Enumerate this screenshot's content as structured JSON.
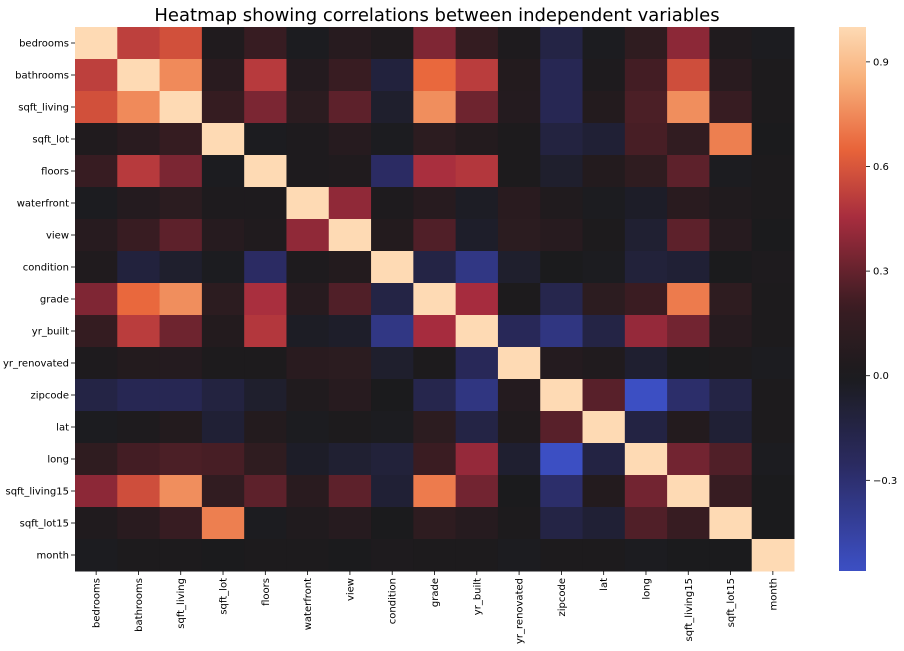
{
  "chart_data": {
    "type": "heatmap",
    "title": "Heatmap showing correlations between independent variables",
    "xlabel": "",
    "ylabel": "",
    "variables": [
      "bedrooms",
      "bathrooms",
      "sqft_living",
      "sqft_lot",
      "floors",
      "waterfront",
      "view",
      "condition",
      "grade",
      "yr_built",
      "yr_renovated",
      "zipcode",
      "lat",
      "long",
      "sqft_living15",
      "sqft_lot15",
      "month"
    ],
    "matrix": [
      [
        1.0,
        0.52,
        0.58,
        0.03,
        0.18,
        -0.01,
        0.08,
        0.03,
        0.36,
        0.16,
        0.02,
        -0.15,
        -0.01,
        0.13,
        0.39,
        0.03,
        -0.01
      ],
      [
        0.52,
        1.0,
        0.75,
        0.09,
        0.5,
        0.06,
        0.19,
        -0.12,
        0.66,
        0.51,
        0.05,
        -0.2,
        0.02,
        0.22,
        0.57,
        0.09,
        0.01
      ],
      [
        0.58,
        0.75,
        1.0,
        0.17,
        0.35,
        0.1,
        0.28,
        -0.06,
        0.76,
        0.32,
        0.06,
        -0.2,
        0.05,
        0.24,
        0.76,
        0.18,
        0.01
      ],
      [
        0.03,
        0.09,
        0.17,
        1.0,
        -0.01,
        0.02,
        0.07,
        -0.01,
        0.11,
        0.05,
        0.01,
        -0.13,
        -0.09,
        0.23,
        0.14,
        0.72,
        0.0
      ],
      [
        0.18,
        0.5,
        0.35,
        -0.01,
        1.0,
        0.02,
        0.03,
        -0.26,
        0.46,
        0.49,
        0.01,
        -0.06,
        0.05,
        0.13,
        0.28,
        -0.01,
        0.01
      ],
      [
        -0.01,
        0.06,
        0.1,
        0.02,
        0.02,
        1.0,
        0.4,
        0.02,
        0.08,
        -0.03,
        0.09,
        0.03,
        -0.01,
        -0.04,
        0.09,
        0.03,
        0.01
      ],
      [
        0.08,
        0.19,
        0.28,
        0.07,
        0.03,
        0.4,
        1.0,
        0.05,
        0.25,
        -0.05,
        0.1,
        0.08,
        0.01,
        -0.08,
        0.28,
        0.07,
        0.0
      ],
      [
        0.03,
        -0.12,
        -0.06,
        -0.01,
        -0.26,
        0.02,
        0.05,
        1.0,
        -0.15,
        -0.36,
        -0.06,
        0.0,
        -0.01,
        -0.11,
        -0.09,
        -0.0,
        0.02
      ],
      [
        0.36,
        0.66,
        0.76,
        0.11,
        0.46,
        0.08,
        0.25,
        -0.15,
        1.0,
        0.45,
        0.01,
        -0.18,
        0.11,
        0.2,
        0.71,
        0.12,
        0.01
      ],
      [
        0.16,
        0.51,
        0.32,
        0.05,
        0.49,
        -0.03,
        -0.05,
        -0.36,
        0.45,
        1.0,
        -0.22,
        -0.35,
        -0.15,
        0.41,
        0.33,
        0.07,
        0.01
      ],
      [
        0.02,
        0.05,
        0.06,
        0.01,
        0.01,
        0.09,
        0.1,
        -0.06,
        0.01,
        -0.22,
        1.0,
        0.06,
        0.03,
        -0.07,
        -0.0,
        0.01,
        -0.01
      ],
      [
        -0.15,
        -0.2,
        -0.2,
        -0.13,
        -0.06,
        0.03,
        0.08,
        0.0,
        -0.18,
        -0.35,
        0.06,
        1.0,
        0.27,
        -0.56,
        -0.28,
        -0.15,
        0.01
      ],
      [
        -0.01,
        0.02,
        0.05,
        -0.09,
        0.05,
        -0.01,
        0.01,
        -0.01,
        0.11,
        -0.15,
        0.03,
        0.27,
        1.0,
        -0.14,
        0.05,
        -0.09,
        0.01
      ],
      [
        0.13,
        0.22,
        0.24,
        0.23,
        0.13,
        -0.04,
        -0.08,
        -0.11,
        0.2,
        0.41,
        -0.07,
        -0.56,
        -0.14,
        1.0,
        0.33,
        0.25,
        -0.01
      ],
      [
        0.39,
        0.57,
        0.76,
        0.14,
        0.28,
        0.09,
        0.28,
        -0.09,
        0.71,
        0.33,
        -0.0,
        -0.28,
        0.05,
        0.33,
        1.0,
        0.18,
        0.0
      ],
      [
        0.03,
        0.09,
        0.18,
        0.72,
        -0.01,
        0.03,
        0.07,
        -0.0,
        0.12,
        0.07,
        0.01,
        -0.15,
        -0.09,
        0.25,
        0.18,
        1.0,
        -0.0
      ],
      [
        -0.01,
        0.01,
        0.01,
        0.0,
        0.01,
        0.01,
        0.0,
        0.02,
        0.01,
        0.01,
        -0.01,
        0.01,
        0.01,
        -0.01,
        0.0,
        -0.0,
        1.0
      ]
    ],
    "colorbar": {
      "vmin": -0.56,
      "vmax": 1.0,
      "center": 0.0,
      "ticks": [
        -0.3,
        0.0,
        0.3,
        0.6,
        0.9
      ],
      "tick_labels": [
        "−0.3",
        "0.0",
        "0.3",
        "0.6",
        "0.9"
      ],
      "colormap": "icefire-like diverging",
      "color_stops": [
        {
          "v": -1.0,
          "color": "#3d8fe6"
        },
        {
          "v": -0.55,
          "color": "#3c4ec2"
        },
        {
          "v": -0.25,
          "color": "#2a2a60"
        },
        {
          "v": 0.0,
          "color": "#1b1b1d"
        },
        {
          "v": 0.2,
          "color": "#3a1c22"
        },
        {
          "v": 0.45,
          "color": "#a62c3e"
        },
        {
          "v": 0.65,
          "color": "#e8643a"
        },
        {
          "v": 0.85,
          "color": "#f7b07a"
        },
        {
          "v": 1.0,
          "color": "#fedab4"
        }
      ]
    }
  }
}
